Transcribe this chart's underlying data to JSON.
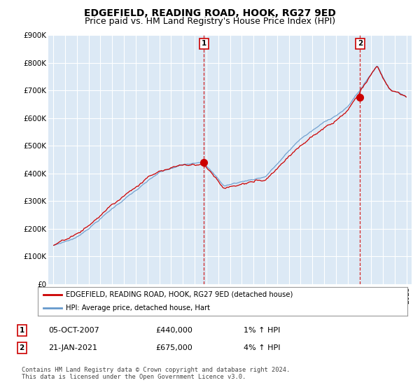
{
  "title": "EDGEFIELD, READING ROAD, HOOK, RG27 9ED",
  "subtitle": "Price paid vs. HM Land Registry's House Price Index (HPI)",
  "ylim": [
    0,
    900000
  ],
  "yticks": [
    0,
    100000,
    200000,
    300000,
    400000,
    500000,
    600000,
    700000,
    800000,
    900000
  ],
  "ytick_labels": [
    "£0",
    "£100K",
    "£200K",
    "£300K",
    "£400K",
    "£500K",
    "£600K",
    "£700K",
    "£800K",
    "£900K"
  ],
  "background_color": "#ffffff",
  "plot_bg_color": "#dce9f5",
  "grid_color": "#ffffff",
  "hpi_color": "#6699cc",
  "price_color": "#cc0000",
  "annotation1_date": "05-OCT-2007",
  "annotation1_price": "£440,000",
  "annotation1_hpi": "1% ↑ HPI",
  "annotation2_date": "21-JAN-2021",
  "annotation2_price": "£675,000",
  "annotation2_hpi": "4% ↑ HPI",
  "legend_label1": "EDGEFIELD, READING ROAD, HOOK, RG27 9ED (detached house)",
  "legend_label2": "HPI: Average price, detached house, Hart",
  "footer": "Contains HM Land Registry data © Crown copyright and database right 2024.\nThis data is licensed under the Open Government Licence v3.0.",
  "title_fontsize": 10,
  "subtitle_fontsize": 9,
  "sale1_t": 2007.79,
  "sale1_price": 440000,
  "sale2_t": 2021.04,
  "sale2_price": 675000
}
